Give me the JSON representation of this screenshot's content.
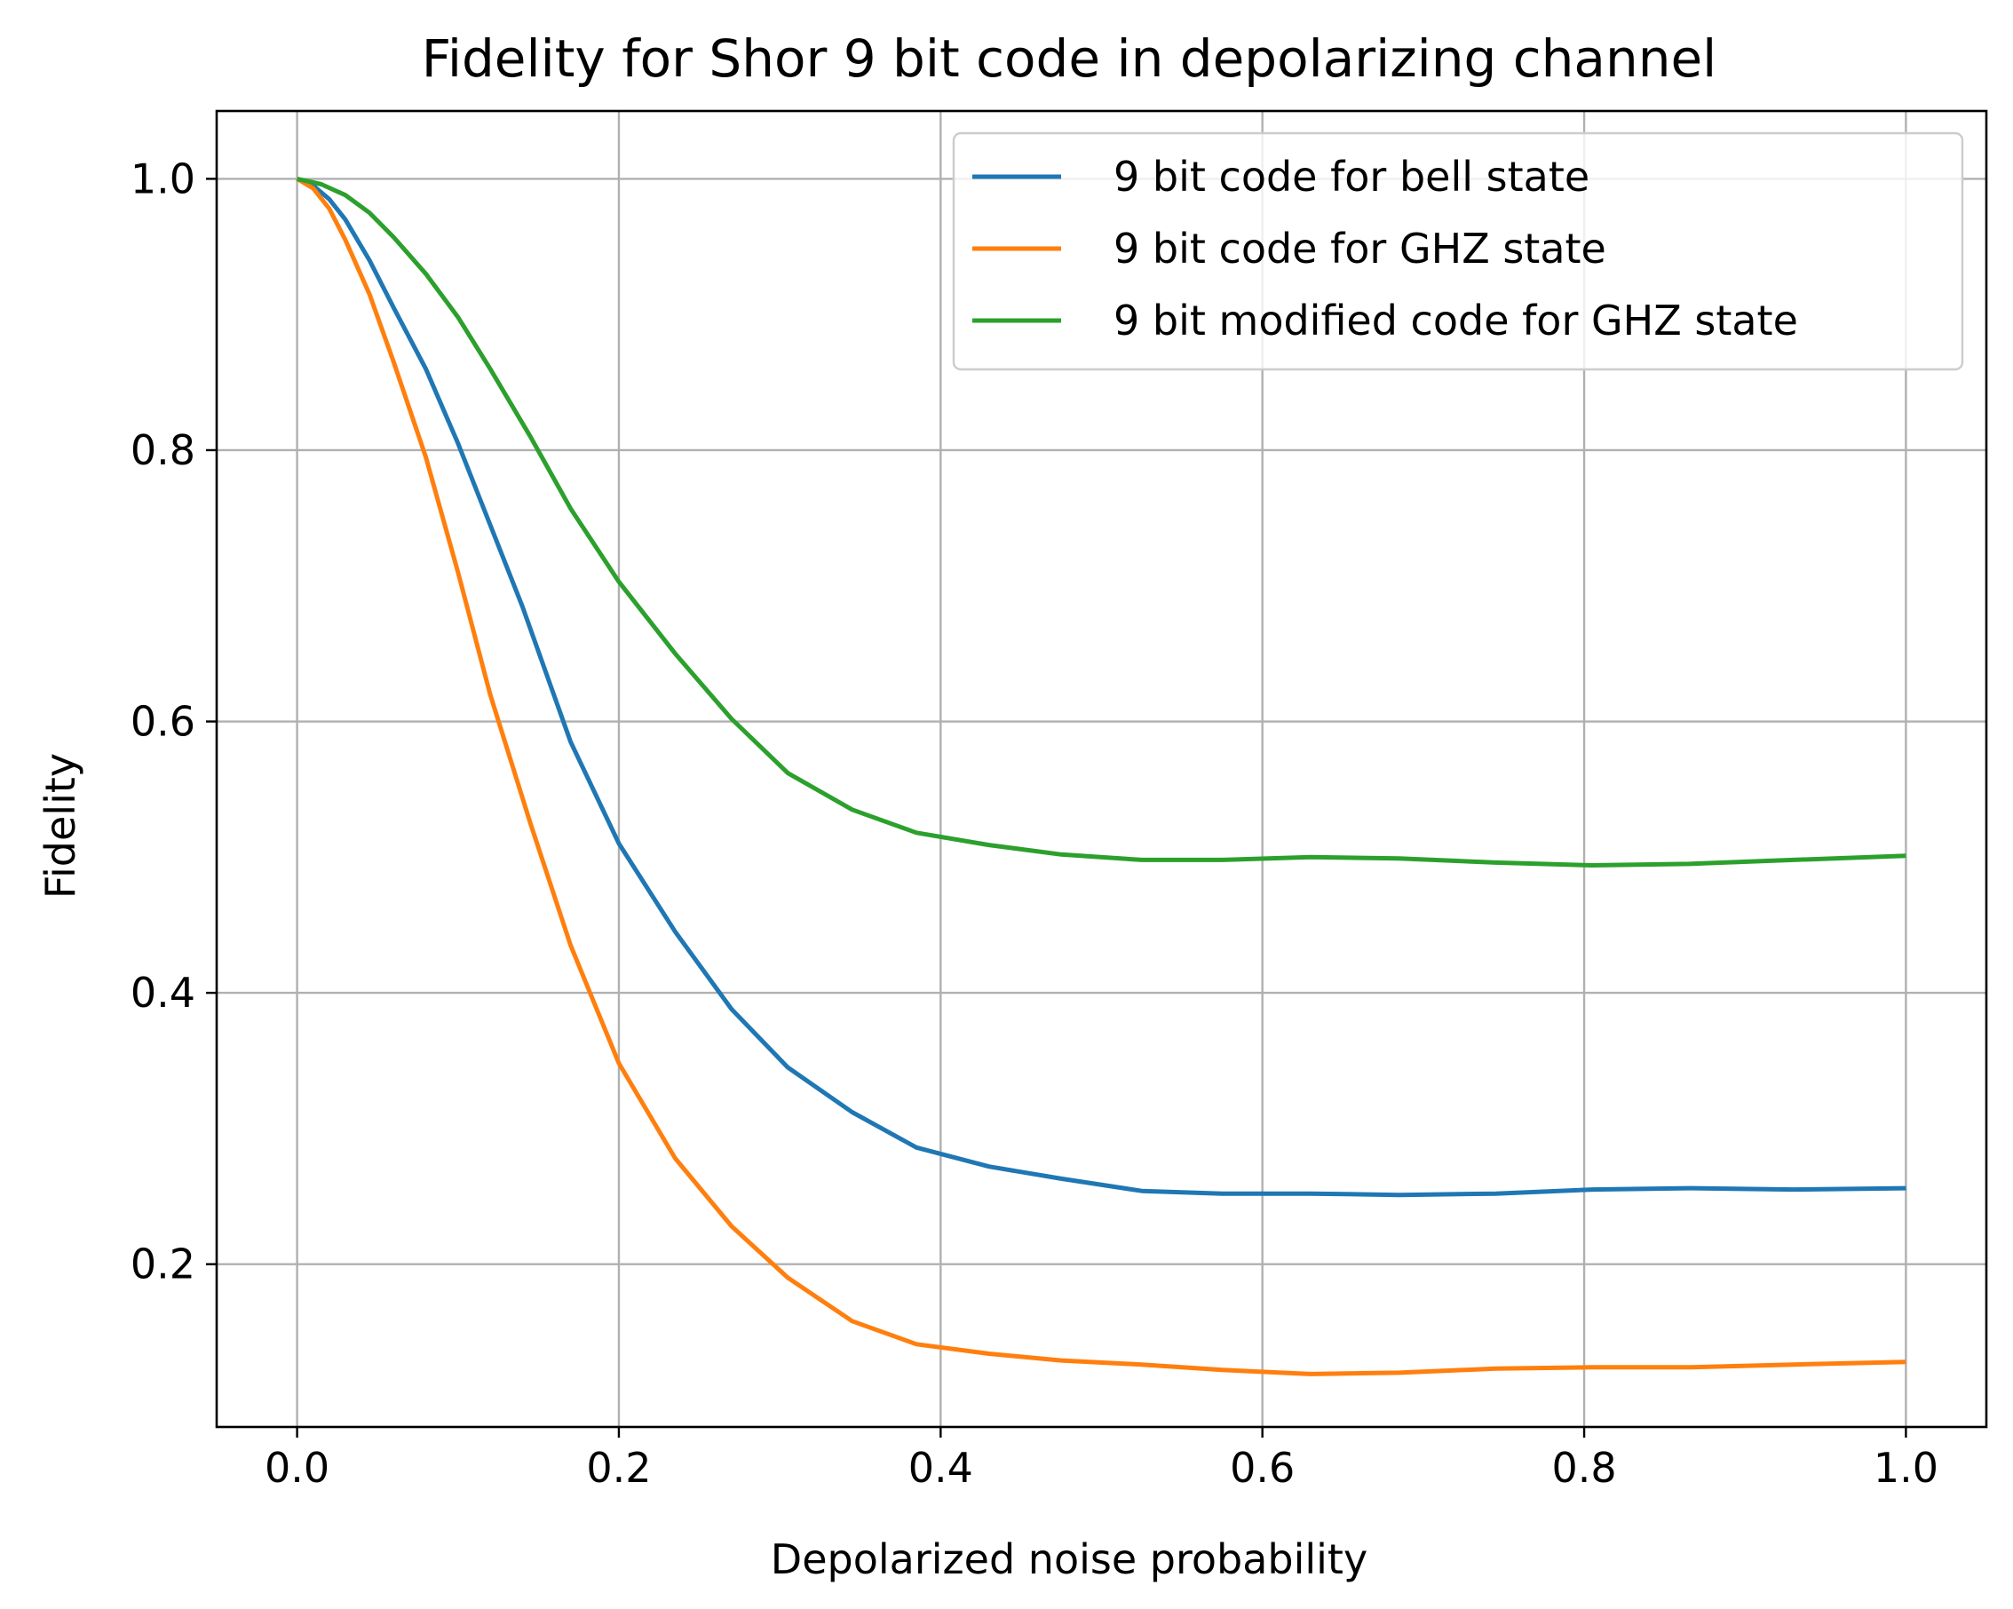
{
  "chart_data": {
    "type": "line",
    "title": "Fidelity for Shor 9 bit code in depolarizing channel",
    "xlabel": "Depolarized noise probability",
    "ylabel": "Fidelity",
    "xlim": [
      -0.05,
      1.05
    ],
    "ylim": [
      0.08,
      1.05
    ],
    "xticks": [
      0.0,
      0.2,
      0.4,
      0.6,
      0.8,
      1.0
    ],
    "xtick_labels": [
      "0.0",
      "0.2",
      "0.4",
      "0.6",
      "0.8",
      "1.0"
    ],
    "yticks": [
      0.2,
      0.4,
      0.6,
      0.8,
      1.0
    ],
    "ytick_labels": [
      "0.2",
      "0.4",
      "0.6",
      "0.8",
      "1.0"
    ],
    "grid": true,
    "legend_position": "top-right",
    "series": [
      {
        "name": "9 bit code for bell state",
        "color": "#1f77b4",
        "x": [
          0.0,
          0.01,
          0.02,
          0.03,
          0.045,
          0.06,
          0.08,
          0.1,
          0.12,
          0.14,
          0.17,
          0.2,
          0.235,
          0.27,
          0.305,
          0.345,
          0.385,
          0.43,
          0.475,
          0.525,
          0.575,
          0.63,
          0.685,
          0.745,
          0.805,
          0.865,
          0.93,
          1.0
        ],
        "y": [
          1.0,
          0.995,
          0.985,
          0.97,
          0.94,
          0.905,
          0.86,
          0.805,
          0.745,
          0.685,
          0.585,
          0.51,
          0.445,
          0.388,
          0.345,
          0.312,
          0.286,
          0.272,
          0.263,
          0.254,
          0.252,
          0.252,
          0.251,
          0.252,
          0.255,
          0.256,
          0.255,
          0.256
        ]
      },
      {
        "name": "9 bit code for GHZ state",
        "color": "#ff7f0e",
        "x": [
          0.0,
          0.01,
          0.02,
          0.03,
          0.045,
          0.06,
          0.08,
          0.1,
          0.12,
          0.145,
          0.17,
          0.2,
          0.235,
          0.27,
          0.305,
          0.345,
          0.385,
          0.43,
          0.475,
          0.525,
          0.575,
          0.63,
          0.685,
          0.745,
          0.805,
          0.865,
          0.93,
          1.0
        ],
        "y": [
          1.0,
          0.993,
          0.978,
          0.955,
          0.915,
          0.865,
          0.795,
          0.71,
          0.62,
          0.525,
          0.435,
          0.348,
          0.278,
          0.228,
          0.19,
          0.158,
          0.141,
          0.134,
          0.129,
          0.126,
          0.122,
          0.119,
          0.12,
          0.123,
          0.124,
          0.124,
          0.126,
          0.128
        ]
      },
      {
        "name": "9 bit modified code for GHZ state",
        "color": "#2ca02c",
        "x": [
          0.0,
          0.015,
          0.03,
          0.045,
          0.06,
          0.08,
          0.1,
          0.12,
          0.145,
          0.17,
          0.2,
          0.235,
          0.27,
          0.305,
          0.345,
          0.385,
          0.43,
          0.475,
          0.525,
          0.575,
          0.63,
          0.685,
          0.745,
          0.805,
          0.865,
          0.93,
          1.0
        ],
        "y": [
          1.0,
          0.996,
          0.988,
          0.975,
          0.957,
          0.93,
          0.898,
          0.86,
          0.81,
          0.757,
          0.703,
          0.65,
          0.602,
          0.562,
          0.535,
          0.518,
          0.509,
          0.502,
          0.498,
          0.498,
          0.5,
          0.499,
          0.496,
          0.494,
          0.495,
          0.498,
          0.501
        ]
      }
    ]
  }
}
